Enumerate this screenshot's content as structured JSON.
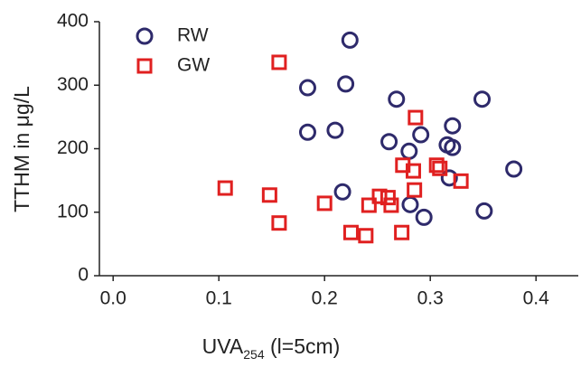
{
  "chart_data": {
    "type": "scatter",
    "xlabel": "UVA",
    "xlabel_sub": "254",
    "xlabel_rest": " (l=5cm)",
    "ylabel": "TTHM in μg/L",
    "xlim": [
      -0.013,
      0.44
    ],
    "ylim": [
      0,
      400
    ],
    "xticks": [
      {
        "value": 0,
        "label": "0.0"
      },
      0.1,
      0.2,
      0.3,
      0.4
    ],
    "yticks": [
      0,
      100,
      200,
      300,
      400
    ],
    "legend": "upper left",
    "series": [
      {
        "name": "RW",
        "color": "#2e2a6b",
        "marker": "circle",
        "x": [
          0.224,
          0.184,
          0.22,
          0.184,
          0.21,
          0.217,
          0.268,
          0.261,
          0.291,
          0.28,
          0.281,
          0.294,
          0.321,
          0.316,
          0.321,
          0.318,
          0.349,
          0.351,
          0.379
        ],
        "values": [
          371,
          296,
          302,
          226,
          229,
          132,
          278,
          211,
          222,
          196,
          112,
          92,
          236,
          206,
          202,
          154,
          278,
          102,
          168
        ]
      },
      {
        "name": "GW",
        "color": "#e02020",
        "marker": "square",
        "x": [
          0.157,
          0.106,
          0.148,
          0.157,
          0.2,
          0.225,
          0.239,
          0.242,
          0.252,
          0.26,
          0.263,
          0.273,
          0.274,
          0.284,
          0.285,
          0.286,
          0.306,
          0.309,
          0.329
        ],
        "values": [
          336,
          138,
          127,
          83,
          114,
          68,
          63,
          111,
          125,
          123,
          111,
          68,
          174,
          165,
          135,
          249,
          174,
          169,
          149
        ]
      }
    ]
  }
}
